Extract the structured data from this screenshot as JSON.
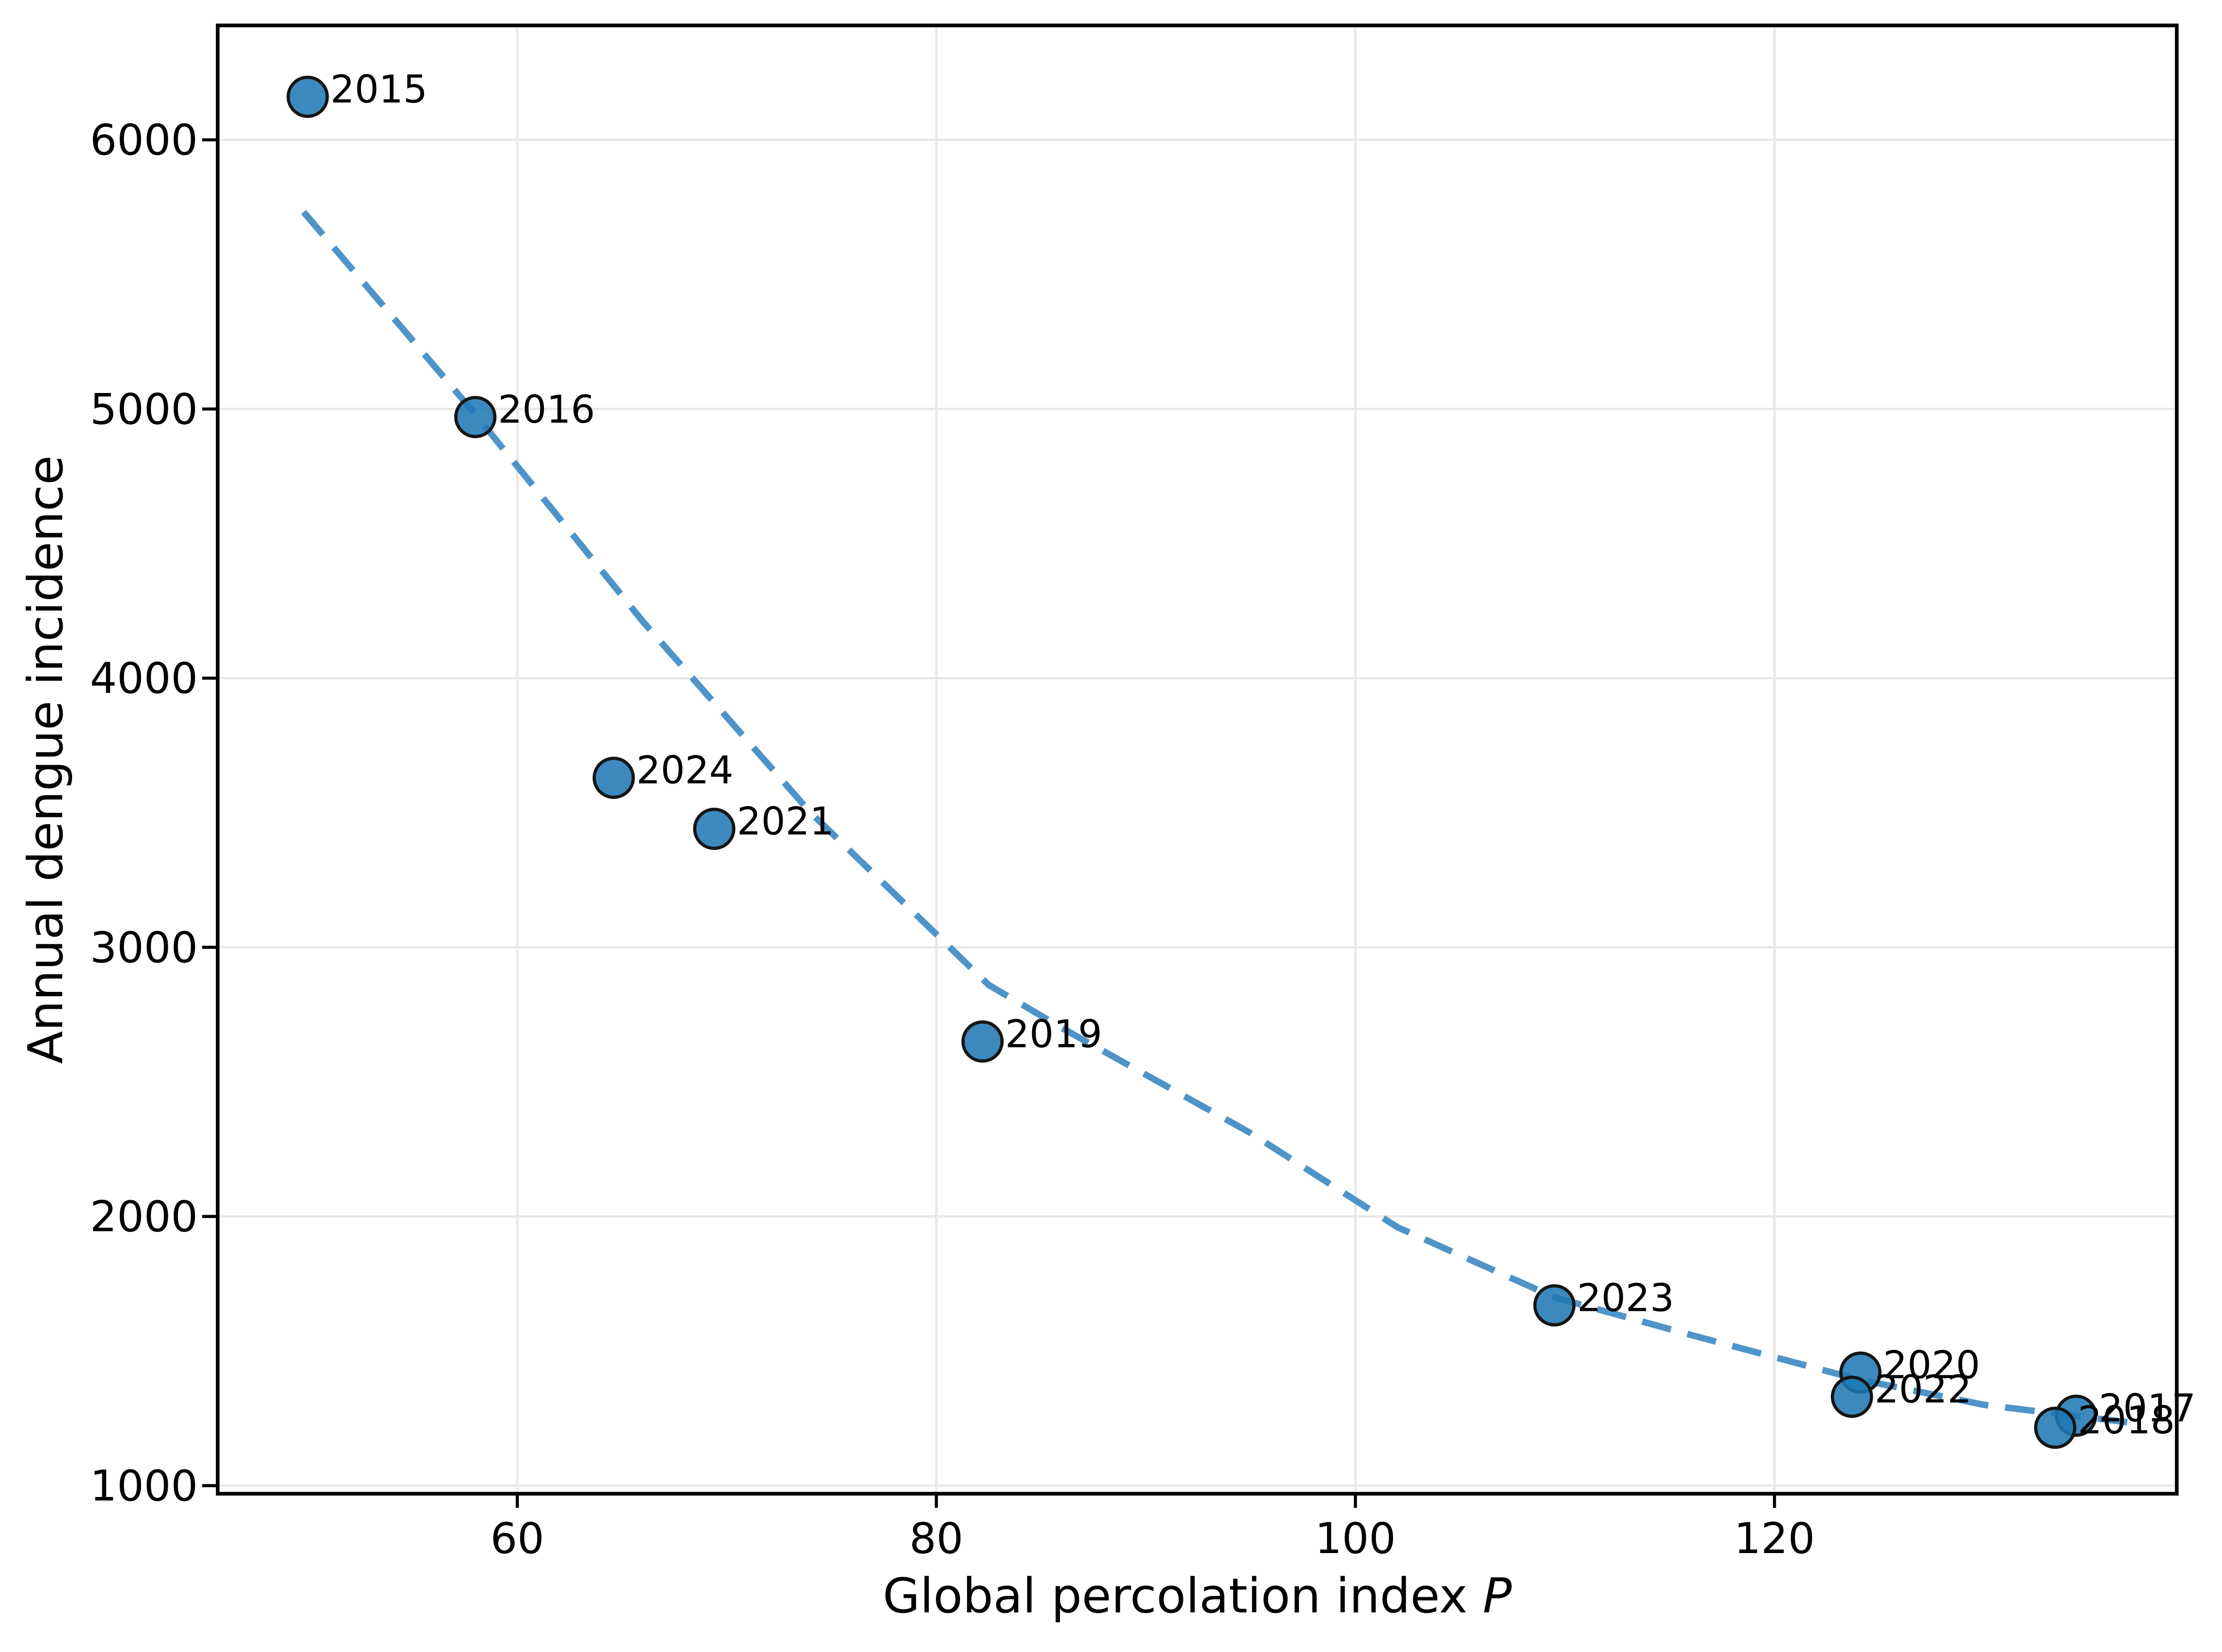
{
  "figure": {
    "background": "#ffffff"
  },
  "chart_data": {
    "type": "scatter",
    "title": "",
    "xlabel": "Global percolation index P",
    "xlabel_plain": "Global percolation index ",
    "xlabel_italic_suffix": "P",
    "ylabel": "Annual dengue incidence",
    "xlim": [
      45.7,
      139.2
    ],
    "ylim": [
      970,
      6425
    ],
    "xticks": [
      60,
      80,
      100,
      120
    ],
    "yticks": [
      1000,
      2000,
      3000,
      4000,
      5000,
      6000
    ],
    "grid": true,
    "legend_position": "none",
    "points": [
      {
        "label": "2015",
        "x": 50.0,
        "y": 6160
      },
      {
        "label": "2016",
        "x": 58.0,
        "y": 4970
      },
      {
        "label": "2017",
        "x": 134.4,
        "y": 1260
      },
      {
        "label": "2018",
        "x": 133.4,
        "y": 1215
      },
      {
        "label": "2019",
        "x": 82.2,
        "y": 2650
      },
      {
        "label": "2020",
        "x": 124.1,
        "y": 1420
      },
      {
        "label": "2021",
        "x": 69.4,
        "y": 3440
      },
      {
        "label": "2022",
        "x": 123.7,
        "y": 1330
      },
      {
        "label": "2023",
        "x": 109.5,
        "y": 1670
      },
      {
        "label": "2024",
        "x": 64.6,
        "y": 3630
      }
    ],
    "trend_line": {
      "style": "dashed",
      "points": [
        [
          49.8,
          5732
        ],
        [
          58.0,
          4980
        ],
        [
          66.0,
          4210
        ],
        [
          74.0,
          3500
        ],
        [
          82.5,
          2860
        ],
        [
          86.0,
          2700
        ],
        [
          95.0,
          2310
        ],
        [
          102.0,
          1960
        ],
        [
          109.5,
          1700
        ],
        [
          116.0,
          1560
        ],
        [
          124.0,
          1395
        ],
        [
          130.0,
          1300
        ],
        [
          136.9,
          1235
        ]
      ]
    },
    "colors": {
      "marker_fill": "#1f77b4",
      "marker_edge": "#151515",
      "trend_line": "#4e94c8",
      "grid": "#e8e8e8",
      "spine": "#000000",
      "text": "#000000",
      "background": "#ffffff"
    }
  }
}
